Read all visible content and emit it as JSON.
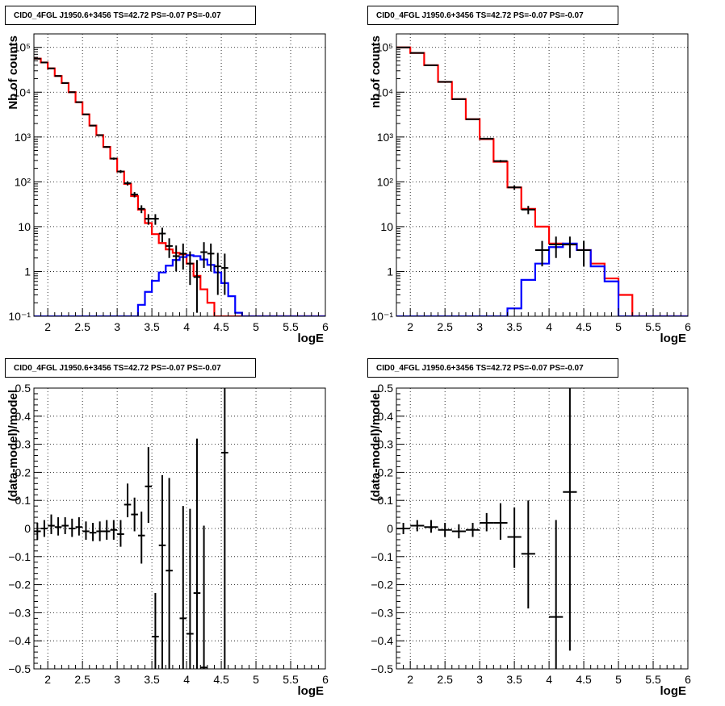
{
  "chart_data": [
    {
      "id": "spec-left",
      "type": "line",
      "title": "CID0_4FGL J1950.6+3456 TS=42.72 PS=-0.07 PS=-0.07",
      "xlabel": "logE",
      "ylabel": "Nb of counts",
      "xlim": [
        1.8,
        6.0
      ],
      "ylim": [
        0.1,
        200000
      ],
      "yscale": "log",
      "grid": true,
      "xticks": [
        "2",
        "2.5",
        "3",
        "3.5",
        "4",
        "4.5",
        "5",
        "5.5",
        "6"
      ],
      "yticks": [
        "10^-1",
        "1",
        "10",
        "10^2",
        "10^3",
        "10^4",
        "10^5"
      ],
      "bin_edges": [
        1.8,
        1.9,
        2.0,
        2.1,
        2.2,
        2.3,
        2.4,
        2.5,
        2.6,
        2.7,
        2.8,
        2.9,
        3.0,
        3.1,
        3.2,
        3.3,
        3.4,
        3.5,
        3.6,
        3.7,
        3.8,
        3.9,
        4.0,
        4.1,
        4.2,
        4.3,
        4.4,
        4.5,
        4.6,
        4.7,
        4.8,
        4.9,
        5.0,
        5.1,
        5.2,
        5.3,
        5.4,
        5.5,
        5.6,
        5.7,
        5.8,
        5.9,
        6.0
      ],
      "series": [
        {
          "color": "#ff0000",
          "style": "step",
          "values": [
            56000,
            46000,
            34000,
            23000,
            16000,
            10000,
            6000,
            3200,
            1800,
            1100,
            600,
            330,
            170,
            90,
            48,
            24,
            12,
            6.8,
            4.3,
            3.1,
            2.6,
            2.4,
            1.5,
            0.8,
            0.4,
            0.2,
            0.1,
            0.1,
            0.1,
            0.1,
            0.1,
            0.1,
            0.1,
            0.1,
            0.1,
            0.1,
            0.1,
            0.1,
            0.1,
            0.1,
            0.1,
            0.1
          ]
        },
        {
          "color": "#0000ff",
          "style": "step",
          "values": [
            0.1,
            0.1,
            0.1,
            0.1,
            0.1,
            0.1,
            0.1,
            0.1,
            0.1,
            0.1,
            0.1,
            0.1,
            0.1,
            0.1,
            0.1,
            0.18,
            0.35,
            0.62,
            0.95,
            1.35,
            1.8,
            2.1,
            2.3,
            2.2,
            1.85,
            1.4,
            0.95,
            0.55,
            0.28,
            0.12,
            0.1,
            0.1,
            0.1,
            0.1,
            0.1,
            0.1,
            0.1,
            0.1,
            0.1,
            0.1,
            0.1,
            0.1
          ]
        },
        {
          "color": "#000000",
          "style": "errorbar",
          "points": [
            [
              1.85,
              56000,
              55700,
              56300
            ],
            [
              1.95,
              46000,
              45700,
              46300
            ],
            [
              2.05,
              34000,
              33700,
              34300
            ],
            [
              2.15,
              23000,
              22800,
              23200
            ],
            [
              2.25,
              16000,
              15800,
              16200
            ],
            [
              2.35,
              10000,
              9900,
              10100
            ],
            [
              2.45,
              6000,
              5920,
              6080
            ],
            [
              2.55,
              3200,
              3140,
              3260
            ],
            [
              2.65,
              1800,
              1760,
              1840
            ],
            [
              2.75,
              1100,
              1070,
              1130
            ],
            [
              2.85,
              600,
              575,
              625
            ],
            [
              2.95,
              330,
              312,
              348
            ],
            [
              3.05,
              170,
              157,
              183
            ],
            [
              3.15,
              93,
              83,
              103
            ],
            [
              3.25,
              52,
              45,
              59
            ],
            [
              3.35,
              25,
              20,
              30
            ],
            [
              3.45,
              15,
              11,
              19
            ],
            [
              3.55,
              15,
              11,
              19
            ],
            [
              3.65,
              7,
              4.5,
              9.5
            ],
            [
              3.75,
              3.7,
              2,
              5.5
            ],
            [
              3.85,
              2.2,
              1,
              3.8
            ],
            [
              3.95,
              2.5,
              1.1,
              4.2
            ],
            [
              4.05,
              1.5,
              0.5,
              2.8
            ],
            [
              4.15,
              0.75,
              0.12,
              1.8
            ],
            [
              4.25,
              2.7,
              1.2,
              4.5
            ],
            [
              4.35,
              2.5,
              1,
              4.2
            ],
            [
              4.45,
              1.3,
              0.3,
              2.6
            ],
            [
              4.55,
              1.2,
              0.3,
              2.5
            ]
          ]
        }
      ]
    },
    {
      "id": "spec-right",
      "type": "line",
      "title": "CID0_4FGL J1950.6+3456 TS=42.72 PS=-0.07 PS=-0.07",
      "xlabel": "logE",
      "ylabel": "nb of counts",
      "xlim": [
        1.8,
        6.0
      ],
      "ylim": [
        0.1,
        200000
      ],
      "yscale": "log",
      "grid": true,
      "xticks": [
        "2",
        "2.5",
        "3",
        "3.5",
        "4",
        "4.5",
        "5",
        "5.5",
        "6"
      ],
      "yticks": [
        "10^-1",
        "1",
        "10",
        "10^2",
        "10^3",
        "10^4",
        "10^5"
      ],
      "bin_edges": [
        1.8,
        2.0,
        2.2,
        2.4,
        2.6,
        2.8,
        3.0,
        3.2,
        3.4,
        3.6,
        3.8,
        4.0,
        4.2,
        4.4,
        4.6,
        4.8,
        5.0,
        5.2,
        5.4,
        5.6,
        5.8,
        6.0
      ],
      "series": [
        {
          "color": "#ff0000",
          "style": "step",
          "values": [
            100000,
            75000,
            40000,
            17000,
            7000,
            2500,
            900,
            280,
            75,
            25,
            10,
            4.2,
            4.0,
            3.0,
            1.5,
            0.7,
            0.3,
            0.1,
            0.1,
            0.1,
            0.1
          ]
        },
        {
          "color": "#0000ff",
          "style": "step",
          "values": [
            0.1,
            0.1,
            0.1,
            0.1,
            0.1,
            0.1,
            0.1,
            0.1,
            0.15,
            0.65,
            1.5,
            3.5,
            4.2,
            3.0,
            1.3,
            0.6,
            0.1,
            0.1,
            0.1,
            0.1,
            0.1
          ]
        },
        {
          "color": "#000000",
          "style": "errorbar",
          "points": [
            [
              1.9,
              100000,
              99700,
              100300
            ],
            [
              2.1,
              75000,
              74700,
              75300
            ],
            [
              2.3,
              40000,
              39800,
              40200
            ],
            [
              2.5,
              17000,
              16870,
              17130
            ],
            [
              2.7,
              7000,
              6920,
              7080
            ],
            [
              2.9,
              2500,
              2450,
              2550
            ],
            [
              3.1,
              920,
              890,
              950
            ],
            [
              3.3,
              290,
              273,
              307
            ],
            [
              3.5,
              75,
              66,
              84
            ],
            [
              3.7,
              24,
              19,
              29
            ],
            [
              3.9,
              3.0,
              1.3,
              4.8
            ],
            [
              4.1,
              4.0,
              2.0,
              6.0
            ],
            [
              4.3,
              4.0,
              2.0,
              6.0
            ],
            [
              4.5,
              3.0,
              1.3,
              4.8
            ]
          ]
        }
      ]
    },
    {
      "id": "res-left",
      "type": "scatter",
      "title": "CID0_4FGL J1950.6+3456 TS=42.72 PS=-0.07 PS=-0.07",
      "xlabel": "logE",
      "ylabel": "(data-model)/model",
      "xlim": [
        1.8,
        6.0
      ],
      "ylim": [
        -0.5,
        0.5
      ],
      "grid": true,
      "xticks": [
        "2",
        "2.5",
        "3",
        "3.5",
        "4",
        "4.5",
        "5",
        "5.5",
        "6"
      ],
      "yticks": [
        "−0.5",
        "−0.4",
        "−0.3",
        "−0.2",
        "−0.1",
        "0",
        "0.1",
        "0.2",
        "0.3",
        "0.4",
        "0.5"
      ],
      "series": [
        {
          "color": "#000000",
          "style": "errorbar",
          "xhalf": 0.05,
          "points": [
            [
              1.85,
              -0.01,
              -0.04,
              0.02
            ],
            [
              1.95,
              0.0,
              -0.03,
              0.03
            ],
            [
              2.05,
              0.01,
              -0.02,
              0.05
            ],
            [
              2.15,
              0.005,
              -0.025,
              0.04
            ],
            [
              2.25,
              0.01,
              -0.02,
              0.04
            ],
            [
              2.35,
              0.0,
              -0.03,
              0.035
            ],
            [
              2.45,
              0.005,
              -0.025,
              0.04
            ],
            [
              2.55,
              -0.01,
              -0.04,
              0.025
            ],
            [
              2.65,
              -0.015,
              -0.045,
              0.02
            ],
            [
              2.75,
              -0.01,
              -0.045,
              0.025
            ],
            [
              2.85,
              -0.01,
              -0.04,
              0.03
            ],
            [
              2.95,
              -0.005,
              -0.04,
              0.03
            ],
            [
              3.05,
              -0.02,
              -0.065,
              0.03
            ],
            [
              3.15,
              0.085,
              0.04,
              0.16
            ],
            [
              3.25,
              0.05,
              -0.01,
              0.11
            ],
            [
              3.35,
              -0.025,
              -0.125,
              0.06
            ],
            [
              3.45,
              0.15,
              0.02,
              0.29
            ],
            [
              3.55,
              -0.385,
              -0.5,
              -0.23
            ],
            [
              3.65,
              -0.06,
              -0.5,
              0.19
            ],
            [
              3.75,
              -0.15,
              -0.5,
              0.18
            ],
            [
              3.95,
              -0.32,
              -0.5,
              0.08
            ],
            [
              4.05,
              -0.375,
              -0.5,
              0.07
            ],
            [
              4.15,
              -0.23,
              -0.5,
              0.32
            ],
            [
              4.25,
              -0.495,
              -0.5,
              0.01
            ],
            [
              4.55,
              0.27,
              -0.5,
              0.5
            ]
          ]
        }
      ]
    },
    {
      "id": "res-right",
      "type": "scatter",
      "title": "CID0_4FGL J1950.6+3456 TS=42.72 PS=-0.07 PS=-0.07",
      "xlabel": "logE",
      "ylabel": "(data-model)/model",
      "xlim": [
        1.8,
        6.0
      ],
      "ylim": [
        -0.5,
        0.5
      ],
      "grid": true,
      "xticks": [
        "2",
        "2.5",
        "3",
        "3.5",
        "4",
        "4.5",
        "5",
        "5.5",
        "6"
      ],
      "yticks": [
        "−0.5",
        "−0.4",
        "−0.3",
        "−0.2",
        "−0.1",
        "0",
        "0.1",
        "0.2",
        "0.3",
        "0.4",
        "0.5"
      ],
      "series": [
        {
          "color": "#000000",
          "style": "errorbar",
          "xhalf": 0.1,
          "points": [
            [
              1.9,
              0.0,
              -0.02,
              0.02
            ],
            [
              2.1,
              0.01,
              -0.01,
              0.03
            ],
            [
              2.3,
              0.005,
              -0.015,
              0.03
            ],
            [
              2.5,
              -0.005,
              -0.03,
              0.02
            ],
            [
              2.7,
              -0.01,
              -0.035,
              0.015
            ],
            [
              2.9,
              -0.005,
              -0.03,
              0.02
            ],
            [
              3.1,
              0.02,
              -0.01,
              0.055
            ],
            [
              3.3,
              0.02,
              -0.04,
              0.09
            ],
            [
              3.5,
              -0.03,
              -0.14,
              0.075
            ],
            [
              3.7,
              -0.09,
              -0.285,
              0.1
            ],
            [
              4.1,
              -0.315,
              -0.5,
              0.03
            ],
            [
              4.3,
              0.13,
              -0.435,
              0.5
            ]
          ]
        }
      ]
    }
  ]
}
